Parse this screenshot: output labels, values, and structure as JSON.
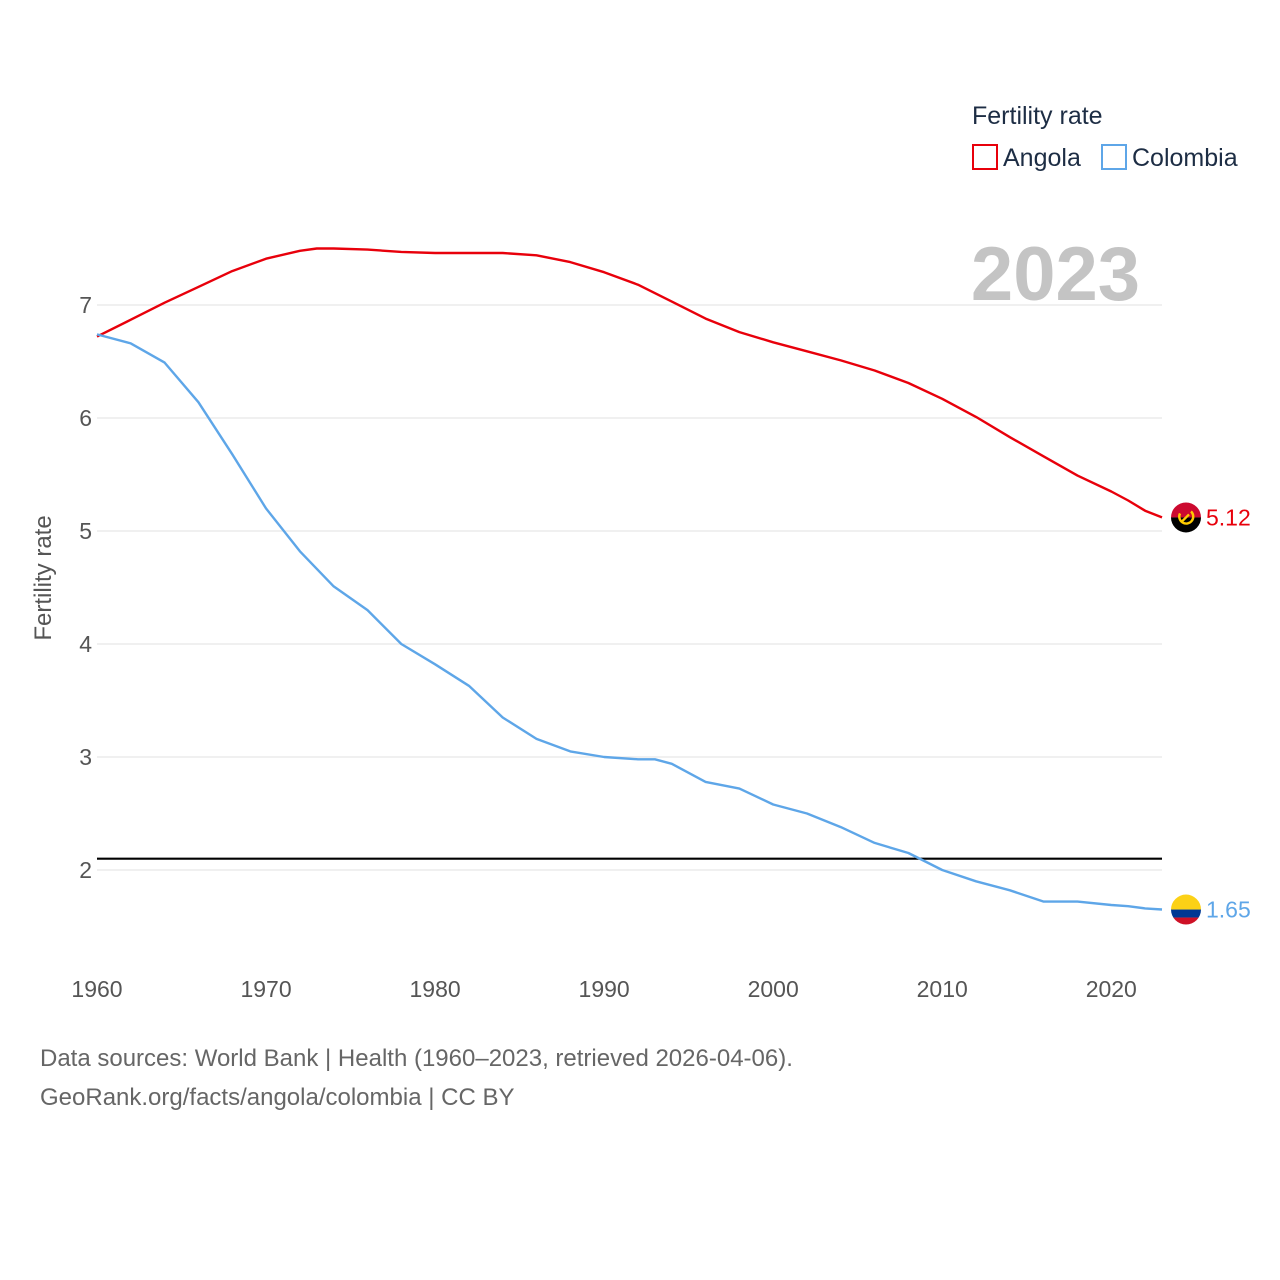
{
  "chart_data": {
    "type": "line",
    "title": "",
    "xlabel": "",
    "ylabel": "Fertility rate",
    "xlim": [
      1960,
      2023
    ],
    "ylim": [
      1.3,
      7.7
    ],
    "x_ticks": [
      1960,
      1970,
      1980,
      1990,
      2000,
      2010,
      2020
    ],
    "y_ticks": [
      2,
      3,
      4,
      5,
      6,
      7
    ],
    "grid": true,
    "legend_title": "Fertility rate",
    "legend_position": "top-right",
    "year_label": "2023",
    "reference_line": {
      "value": 2.1,
      "color": "#000000"
    },
    "series": [
      {
        "name": "Angola",
        "color": "#e8000b",
        "end_label": "5.12",
        "points": [
          [
            1960,
            6.72
          ],
          [
            1962,
            6.87
          ],
          [
            1964,
            7.02
          ],
          [
            1966,
            7.16
          ],
          [
            1968,
            7.3
          ],
          [
            1970,
            7.41
          ],
          [
            1972,
            7.48
          ],
          [
            1973,
            7.5
          ],
          [
            1974,
            7.5
          ],
          [
            1976,
            7.49
          ],
          [
            1978,
            7.47
          ],
          [
            1980,
            7.46
          ],
          [
            1982,
            7.46
          ],
          [
            1984,
            7.46
          ],
          [
            1986,
            7.44
          ],
          [
            1988,
            7.38
          ],
          [
            1990,
            7.29
          ],
          [
            1992,
            7.18
          ],
          [
            1994,
            7.03
          ],
          [
            1996,
            6.88
          ],
          [
            1998,
            6.76
          ],
          [
            2000,
            6.67
          ],
          [
            2002,
            6.59
          ],
          [
            2004,
            6.51
          ],
          [
            2006,
            6.42
          ],
          [
            2008,
            6.31
          ],
          [
            2010,
            6.17
          ],
          [
            2012,
            6.01
          ],
          [
            2014,
            5.83
          ],
          [
            2016,
            5.66
          ],
          [
            2018,
            5.49
          ],
          [
            2020,
            5.35
          ],
          [
            2021,
            5.27
          ],
          [
            2022,
            5.18
          ],
          [
            2023,
            5.12
          ]
        ]
      },
      {
        "name": "Colombia",
        "color": "#5ea6e8",
        "end_label": "1.65",
        "points": [
          [
            1960,
            6.74
          ],
          [
            1962,
            6.66
          ],
          [
            1964,
            6.49
          ],
          [
            1966,
            6.14
          ],
          [
            1968,
            5.68
          ],
          [
            1970,
            5.2
          ],
          [
            1972,
            4.82
          ],
          [
            1974,
            4.51
          ],
          [
            1976,
            4.3
          ],
          [
            1978,
            4.0
          ],
          [
            1980,
            3.82
          ],
          [
            1982,
            3.63
          ],
          [
            1984,
            3.35
          ],
          [
            1986,
            3.16
          ],
          [
            1988,
            3.05
          ],
          [
            1990,
            3.0
          ],
          [
            1992,
            2.98
          ],
          [
            1993,
            2.98
          ],
          [
            1994,
            2.94
          ],
          [
            1996,
            2.78
          ],
          [
            1998,
            2.72
          ],
          [
            2000,
            2.58
          ],
          [
            2002,
            2.5
          ],
          [
            2004,
            2.38
          ],
          [
            2006,
            2.24
          ],
          [
            2008,
            2.15
          ],
          [
            2010,
            2.0
          ],
          [
            2012,
            1.9
          ],
          [
            2014,
            1.82
          ],
          [
            2016,
            1.72
          ],
          [
            2018,
            1.72
          ],
          [
            2020,
            1.69
          ],
          [
            2021,
            1.68
          ],
          [
            2022,
            1.66
          ],
          [
            2023,
            1.65
          ]
        ]
      }
    ]
  },
  "footer": {
    "line1": "Data sources: World Bank | Health (1960–2023, retrieved 2026-04-06).",
    "line2": "GeoRank.org/facts/angola/colombia | CC BY"
  },
  "colors": {
    "grid": "#e6e6e6",
    "flag_angola_red": "#cc092f",
    "flag_angola_black": "#000000",
    "flag_angola_emblem": "#ffcb00",
    "flag_colombia_yellow": "#fcd116",
    "flag_colombia_blue": "#003893",
    "flag_colombia_red": "#ce1126"
  },
  "icons": {
    "angola": "angola-flag-icon",
    "colombia": "colombia-flag-icon"
  }
}
